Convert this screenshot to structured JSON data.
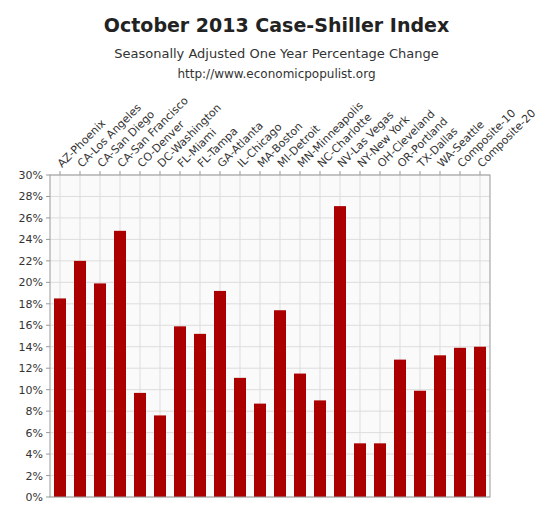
{
  "chart_data": {
    "type": "bar",
    "title": "October 2013 Case-Shiller Index",
    "subtitle": "Seasonally Adjusted One Year Percentage Change",
    "annotations": [
      "http://www.economicpopulist.org"
    ],
    "categories": [
      "AZ-Phoenix",
      "CA-Los Angeles",
      "CA-San Diego",
      "CA-San Francisco",
      "CO-Denver",
      "DC-Washington",
      "FL-Miami",
      "FL-Tampa",
      "GA-Atlanta",
      "IL-Chicago",
      "MA-Boston",
      "MI-Detroit",
      "MN-Minneapolis",
      "NC-Charlotte",
      "NV-Las Vegas",
      "NY-New York",
      "OH-Cleveland",
      "OR-Portland",
      "TX-Dallas",
      "WA-Seattle",
      "Composite-10",
      "Composite-20"
    ],
    "values": [
      18.5,
      22.0,
      19.9,
      24.8,
      9.7,
      7.6,
      15.9,
      15.2,
      19.2,
      11.1,
      8.7,
      17.4,
      11.5,
      9.0,
      27.1,
      5.0,
      5.0,
      12.8,
      9.9,
      13.2,
      13.9,
      14.0
    ],
    "color": "#aa0000",
    "ylim": [
      0,
      30
    ],
    "yticks": [
      {
        "value": 0,
        "label": "0%"
      },
      {
        "value": 2,
        "label": "2%"
      },
      {
        "value": 4,
        "label": "4%"
      },
      {
        "value": 6,
        "label": "6%"
      },
      {
        "value": 8,
        "label": "8%"
      },
      {
        "value": 10,
        "label": "10%"
      },
      {
        "value": 12,
        "label": "12%"
      },
      {
        "value": 14,
        "label": "14%"
      },
      {
        "value": 16,
        "label": "16%"
      },
      {
        "value": 18,
        "label": "18%"
      },
      {
        "value": 20,
        "label": "20%"
      },
      {
        "value": 22,
        "label": "22%"
      },
      {
        "value": 24,
        "label": "24%"
      },
      {
        "value": 26,
        "label": "26%"
      },
      {
        "value": 28,
        "label": "28%"
      },
      {
        "value": 30,
        "label": "30%"
      }
    ],
    "grid": true
  }
}
